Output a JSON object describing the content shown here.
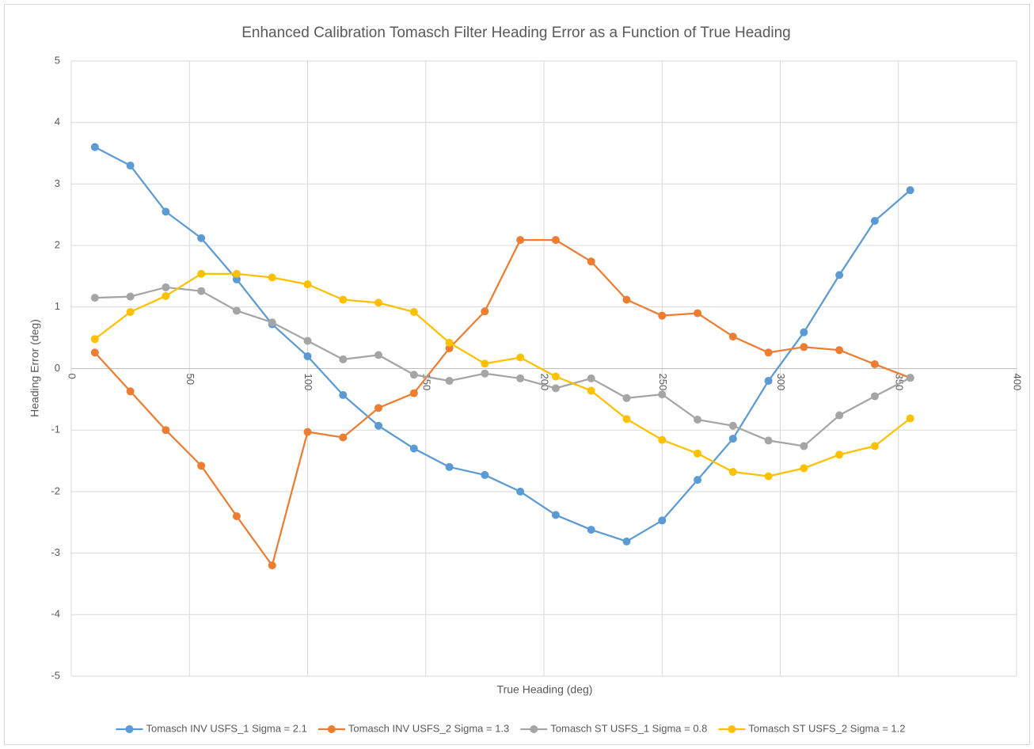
{
  "chart_data": {
    "type": "line",
    "title": "Enhanced Calibration Tomasch Filter Heading Error as a Function of True Heading",
    "x_label": "True Heading (deg)",
    "y_label": "Heading Error (deg)",
    "x": [
      10,
      25,
      40,
      55,
      70,
      85,
      100,
      115,
      130,
      145,
      160,
      175,
      190,
      205,
      220,
      235,
      250,
      265,
      280,
      295,
      310,
      325,
      340,
      355
    ],
    "series": [
      {
        "name": "Tomasch INV USFS_1 Sigma = 2.1",
        "color": "#5b9bd5",
        "values": [
          3.6,
          3.3,
          2.55,
          2.12,
          1.45,
          0.72,
          0.2,
          -0.43,
          -0.93,
          -1.3,
          -1.6,
          -1.73,
          -2.0,
          -2.38,
          -2.62,
          -2.81,
          -2.47,
          -1.81,
          -1.14,
          -0.2,
          0.59,
          1.52,
          2.4,
          2.9
        ]
      },
      {
        "name": "Tomasch INV USFS_2 Sigma = 1.3",
        "color": "#ed7d31",
        "values": [
          0.26,
          -0.37,
          -1.0,
          -1.58,
          -2.4,
          -3.2,
          -1.03,
          -1.12,
          -0.64,
          -0.4,
          0.33,
          0.93,
          2.09,
          2.09,
          1.74,
          1.12,
          0.86,
          0.9,
          0.52,
          0.26,
          0.35,
          0.3,
          0.07,
          -0.15
        ]
      },
      {
        "name": "Tomasch ST USFS_1 Sigma = 0.8",
        "color": "#a5a5a5",
        "values": [
          1.15,
          1.17,
          1.32,
          1.26,
          0.94,
          0.75,
          0.45,
          0.15,
          0.22,
          -0.1,
          -0.2,
          -0.08,
          -0.16,
          -0.32,
          -0.16,
          -0.48,
          -0.42,
          -0.83,
          -0.93,
          -1.17,
          -1.26,
          -0.76,
          -0.45,
          -0.15
        ]
      },
      {
        "name": "Tomasch ST USFS_2 Sigma = 1.2",
        "color": "#ffc000",
        "values": [
          0.48,
          0.92,
          1.18,
          1.54,
          1.54,
          1.48,
          1.37,
          1.12,
          1.07,
          0.92,
          0.42,
          0.08,
          0.18,
          -0.13,
          -0.36,
          -0.82,
          -1.16,
          -1.38,
          -1.68,
          -1.75,
          -1.62,
          -1.4,
          -1.26,
          -0.81
        ]
      }
    ],
    "xlim": [
      0,
      400
    ],
    "xticks": [
      0,
      50,
      100,
      150,
      200,
      250,
      300,
      350,
      400
    ],
    "ylim": [
      -5,
      5
    ],
    "yticks": [
      -5,
      -4,
      -3,
      -2,
      -1,
      0,
      1,
      2,
      3,
      4,
      5
    ],
    "grid": true,
    "legend": "bottom"
  }
}
